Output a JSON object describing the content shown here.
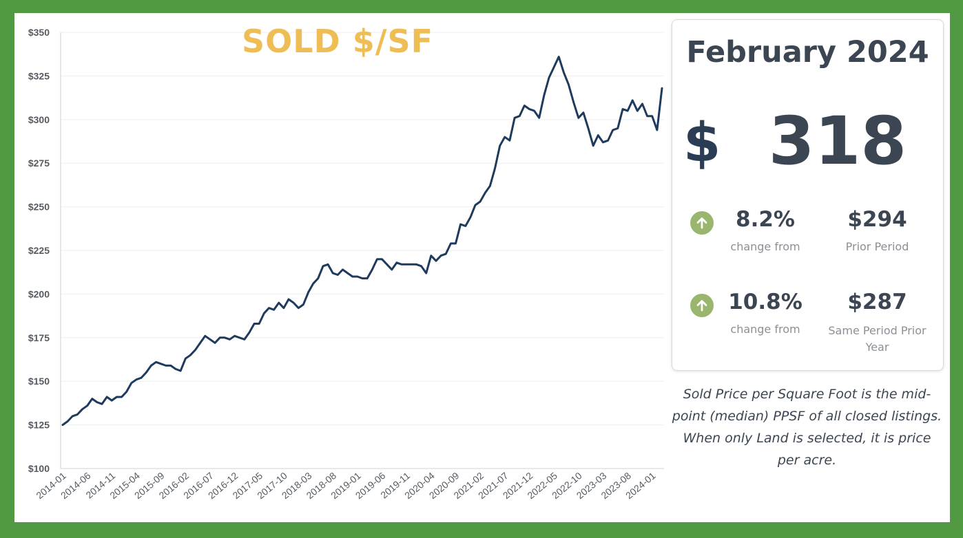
{
  "chart_data": {
    "type": "line",
    "title": "SOLD $/SF",
    "ylim": [
      100,
      350
    ],
    "y_ticks": [
      100,
      125,
      150,
      175,
      200,
      225,
      250,
      275,
      300,
      325,
      350
    ],
    "y_tick_labels": [
      "$100",
      "$125",
      "$150",
      "$175",
      "$200",
      "$225",
      "$250",
      "$275",
      "$300",
      "$325",
      "$350"
    ],
    "x_tick_labels": [
      "2014-01",
      "2014-06",
      "2014-11",
      "2015-04",
      "2015-09",
      "2016-02",
      "2016-07",
      "2016-12",
      "2017-05",
      "2017-10",
      "2018-03",
      "2018-08",
      "2019-01",
      "2019-06",
      "2019-11",
      "2020-04",
      "2020-09",
      "2021-02",
      "2021-07",
      "2021-12",
      "2022-05",
      "2022-10",
      "2023-03",
      "2023-08",
      "2024-01"
    ],
    "x_start": "2014-01",
    "x_end": "2024-02",
    "grid": true,
    "line_color": "#1e3a5c",
    "values": [
      125,
      127,
      130,
      131,
      134,
      136,
      140,
      138,
      137,
      141,
      139,
      141,
      141,
      144,
      149,
      151,
      152,
      155,
      159,
      161,
      160,
      159,
      159,
      157,
      156,
      163,
      165,
      168,
      172,
      176,
      174,
      172,
      175,
      175,
      174,
      176,
      175,
      174,
      178,
      183,
      183,
      189,
      192,
      191,
      195,
      192,
      197,
      195,
      192,
      194,
      201,
      206,
      209,
      216,
      217,
      212,
      211,
      214,
      212,
      210,
      210,
      209,
      209,
      214,
      220,
      220,
      217,
      214,
      218,
      217,
      217,
      217,
      217,
      216,
      212,
      222,
      219,
      222,
      223,
      229,
      229,
      240,
      239,
      244,
      251,
      253,
      258,
      262,
      272,
      285,
      290,
      288,
      301,
      302,
      308,
      306,
      305,
      301,
      314,
      324,
      330,
      336,
      327,
      320,
      310,
      301,
      304,
      295,
      285,
      291,
      287,
      288,
      294,
      295,
      306,
      305,
      311,
      305,
      309,
      302,
      302,
      294,
      318
    ]
  },
  "card": {
    "period": "February 2024",
    "currency": "$",
    "value": "318",
    "rows": [
      {
        "pct": "8.2%",
        "pct_label": "change from",
        "ref_value": "$294",
        "ref_label": "Prior Period",
        "direction": "up"
      },
      {
        "pct": "10.8%",
        "pct_label": "change from",
        "ref_value": "$287",
        "ref_label": "Same Period Prior Year",
        "direction": "up"
      }
    ],
    "arrow_color": "#9ab56e"
  },
  "footnote": "Sold Price per Square Foot is the mid-point (median) PPSF of all closed listings. When only Land is selected, it is price per acre."
}
